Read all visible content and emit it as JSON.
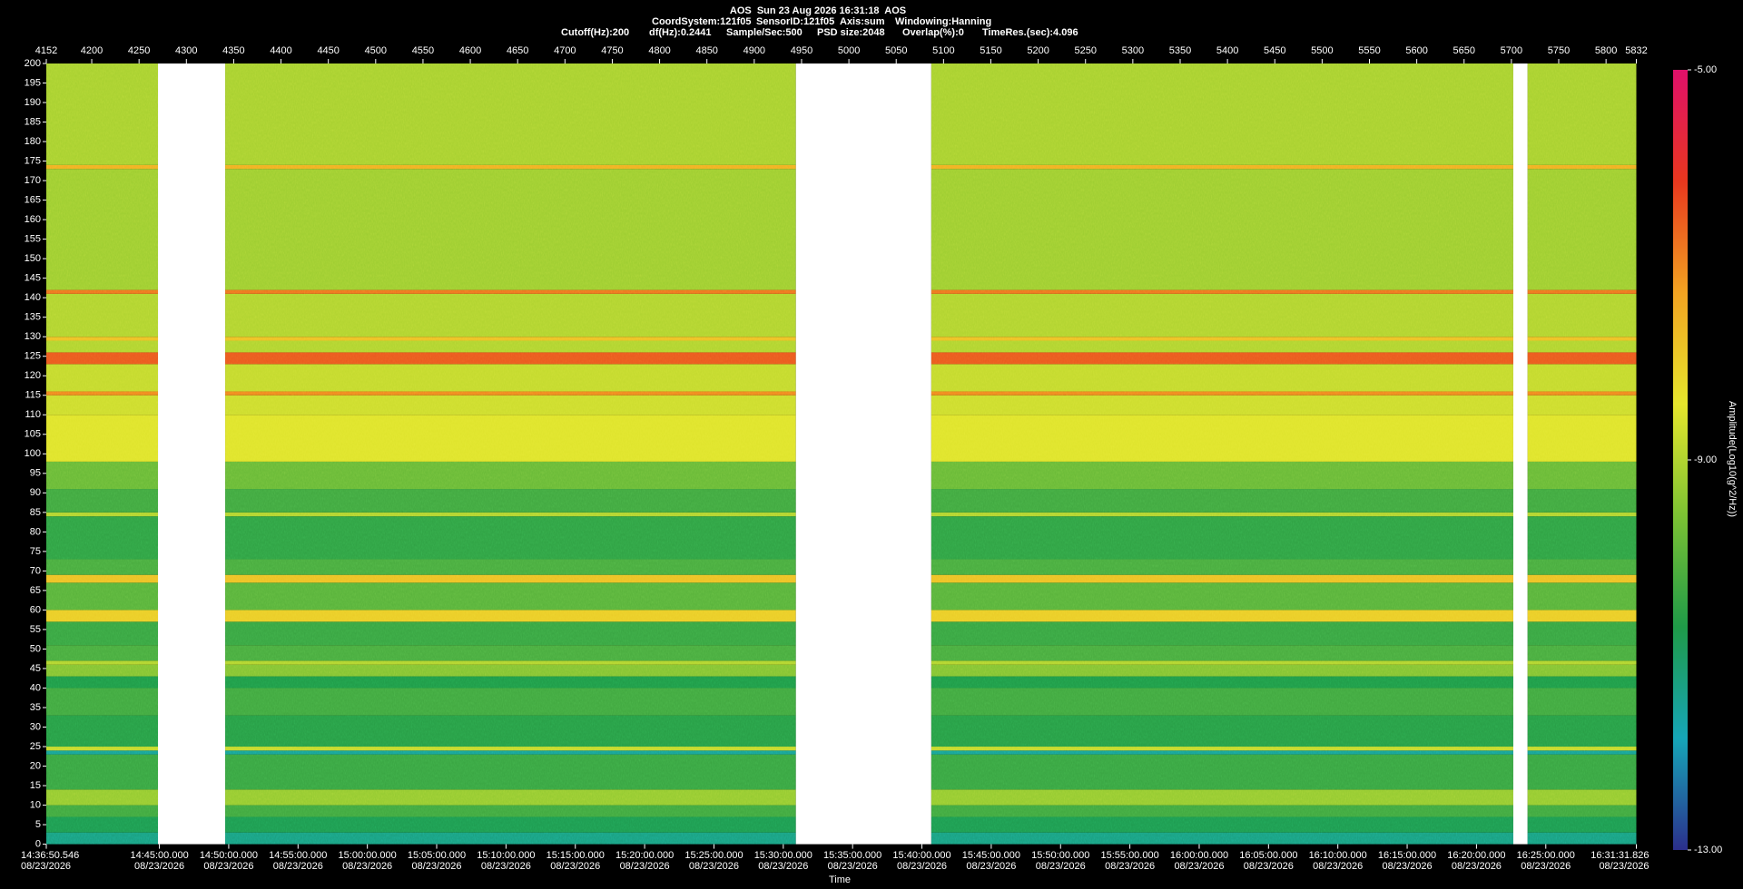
{
  "chart_data": {
    "type": "spectrogram",
    "title": "AOS  Sun 23 Aug 2026 16:31:18  AOS",
    "info_line1": [
      "CoordSystem:121f05",
      "SensorID:121f05",
      "Axis:sum",
      "Windowing:Hanning"
    ],
    "info_line2": [
      "Cutoff(Hz):200",
      "df(Hz):0.2441",
      "Sample/Sec:500",
      "PSD size:2048",
      "Overlap(%):0",
      "TimeRes.(sec):4.096"
    ],
    "x_label": "Time",
    "colorbar_label": "Amplitude(Log10(g^2/Hz))",
    "xlim": [
      4152,
      5832
    ],
    "xticks": [
      4152,
      4200,
      4250,
      4300,
      4350,
      4400,
      4450,
      4500,
      4550,
      4600,
      4650,
      4700,
      4750,
      4800,
      4850,
      4900,
      4950,
      5000,
      5050,
      5100,
      5150,
      5200,
      5250,
      5300,
      5350,
      5400,
      5450,
      5500,
      5550,
      5600,
      5650,
      5700,
      5750,
      5800,
      5832
    ],
    "x2lim": [
      0,
      6881.28
    ],
    "x2ticks": [
      {
        "value": 0,
        "label": "14:36:50.546"
      },
      {
        "value": 489.454,
        "label": "14:45:00.000"
      },
      {
        "value": 789.454,
        "label": "14:50:00.000"
      },
      {
        "value": 1089.454,
        "label": "14:55:00.000"
      },
      {
        "value": 1389.454,
        "label": "15:00:00.000"
      },
      {
        "value": 1689.454,
        "label": "15:05:00.000"
      },
      {
        "value": 1989.454,
        "label": "15:10:00.000"
      },
      {
        "value": 2289.454,
        "label": "15:15:00.000"
      },
      {
        "value": 2589.454,
        "label": "15:20:00.000"
      },
      {
        "value": 2889.454,
        "label": "15:25:00.000"
      },
      {
        "value": 3189.454,
        "label": "15:30:00.000"
      },
      {
        "value": 3489.454,
        "label": "15:35:00.000"
      },
      {
        "value": 3789.454,
        "label": "15:40:00.000"
      },
      {
        "value": 4089.454,
        "label": "15:45:00.000"
      },
      {
        "value": 4389.454,
        "label": "15:50:00.000"
      },
      {
        "value": 4689.454,
        "label": "15:55:00.000"
      },
      {
        "value": 4989.454,
        "label": "16:00:00.000"
      },
      {
        "value": 5289.454,
        "label": "16:05:00.000"
      },
      {
        "value": 5589.454,
        "label": "16:10:00.000"
      },
      {
        "value": 5889.454,
        "label": "16:15:00.000"
      },
      {
        "value": 6189.454,
        "label": "16:20:00.000"
      },
      {
        "value": 6489.454,
        "label": "16:25:00.000"
      },
      {
        "value": 6881.28,
        "label": "16:31:31.826"
      }
    ],
    "x2tick_dates": [
      "08/23/2026",
      "08/23/2026",
      "08/23/2026",
      "08/23/2026",
      "08/23/2026",
      "08/23/2026",
      "08/23/2026",
      "08/23/2026",
      "08/23/2026",
      "08/23/2026",
      "08/23/2026",
      "08/23/2026",
      "08/23/2026",
      "08/23/2026",
      "08/23/2026",
      "08/23/2026",
      "08/23/2026",
      "08/23/2026",
      "08/23/2026",
      "08/23/2026",
      "08/23/2026",
      "08/23/2026",
      "08/23/2026"
    ],
    "ylim": [
      0,
      200
    ],
    "yticks": [
      0,
      5,
      10,
      15,
      20,
      25,
      30,
      35,
      40,
      45,
      50,
      55,
      60,
      65,
      70,
      75,
      80,
      85,
      90,
      95,
      100,
      105,
      110,
      115,
      120,
      125,
      130,
      135,
      140,
      145,
      150,
      155,
      160,
      165,
      170,
      175,
      180,
      185,
      190,
      195,
      200
    ],
    "gaps": [
      [
        4270,
        4341
      ],
      [
        4944,
        5087
      ],
      [
        5702,
        5717
      ]
    ],
    "ybins": [
      0,
      3,
      7,
      10,
      14,
      23,
      24,
      25,
      33,
      40,
      43,
      46,
      47,
      51,
      57,
      60,
      67,
      69,
      73,
      84,
      85,
      91,
      98,
      110,
      115,
      116,
      123,
      126,
      129,
      130,
      141,
      142,
      173,
      174,
      200
    ],
    "values": [
      -11.3,
      -10.8,
      -10.3,
      -9.3,
      -10.4,
      -11.5,
      -8.8,
      -10.6,
      -10.3,
      -10.7,
      -9.5,
      -9.0,
      -10.2,
      -10.4,
      -8.0,
      -10.0,
      -7.8,
      -10.2,
      -10.5,
      -9.0,
      -10.3,
      -9.8,
      -8.5,
      -8.7,
      -7.0,
      -8.8,
      -6.5,
      -9.0,
      -7.8,
      -9.0,
      -6.8,
      -9.2,
      -7.5,
      -9.1
    ],
    "clim": [
      -13,
      -5
    ],
    "cticks": [
      {
        "value": -5,
        "label": "-5.00"
      },
      {
        "value": -9,
        "label": "-9.00"
      },
      {
        "value": -13,
        "label": "-13.00"
      }
    ],
    "colorscale": [
      "#2b2f8c",
      "#16a6b8",
      "#1f9a48",
      "#7cc233",
      "#e6e62c",
      "#f2a321",
      "#e8371e",
      "#e0106a"
    ],
    "gap_color": "#ffffff"
  }
}
